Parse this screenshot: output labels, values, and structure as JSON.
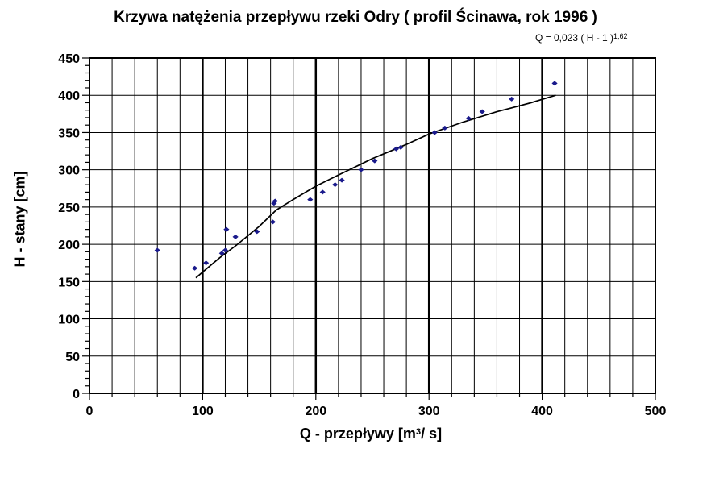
{
  "title": "Krzywa natężenia przepływu rzeki Odry ( profil Ścinawa, rok 1996 )",
  "formula": {
    "text": "Q = 0,023 ( H - 1 )",
    "exponent": "1,62"
  },
  "xlabel": {
    "before": "Q - przepływy [m",
    "sup": "3",
    "after": "/ s]"
  },
  "ylabel": "H - stany [cm]",
  "colors": {
    "points": "#1a1a8c",
    "curve": "#000000",
    "grid": "#000000"
  },
  "chart_data": {
    "type": "scatter",
    "xlim": [
      0,
      500
    ],
    "ylim": [
      0,
      450
    ],
    "x_ticks": [
      0,
      100,
      200,
      300,
      400,
      500
    ],
    "y_ticks": [
      0,
      50,
      100,
      150,
      200,
      250,
      300,
      350,
      400,
      450
    ],
    "x_major_step": 100,
    "x_minor_step": 20,
    "y_major_step": 50,
    "y_minor_step": 10,
    "grid": true,
    "points": [
      {
        "x": 60,
        "y": 192
      },
      {
        "x": 93,
        "y": 168
      },
      {
        "x": 103,
        "y": 175
      },
      {
        "x": 117,
        "y": 188
      },
      {
        "x": 120,
        "y": 192
      },
      {
        "x": 121,
        "y": 220
      },
      {
        "x": 129,
        "y": 210
      },
      {
        "x": 148,
        "y": 217
      },
      {
        "x": 162,
        "y": 230
      },
      {
        "x": 163,
        "y": 255
      },
      {
        "x": 164,
        "y": 258
      },
      {
        "x": 195,
        "y": 260
      },
      {
        "x": 206,
        "y": 270
      },
      {
        "x": 217,
        "y": 280
      },
      {
        "x": 223,
        "y": 286
      },
      {
        "x": 240,
        "y": 300
      },
      {
        "x": 252,
        "y": 312
      },
      {
        "x": 271,
        "y": 328
      },
      {
        "x": 275,
        "y": 330
      },
      {
        "x": 305,
        "y": 350
      },
      {
        "x": 314,
        "y": 356
      },
      {
        "x": 335,
        "y": 369
      },
      {
        "x": 347,
        "y": 378
      },
      {
        "x": 373,
        "y": 395
      },
      {
        "x": 411,
        "y": 416
      }
    ],
    "curve": {
      "name": "Q = 0,023 ( H - 1 )^1,62",
      "points": [
        {
          "x": 94,
          "y": 155
        },
        {
          "x": 101,
          "y": 164
        },
        {
          "x": 115,
          "y": 182
        },
        {
          "x": 130,
          "y": 199
        },
        {
          "x": 150,
          "y": 224
        },
        {
          "x": 165,
          "y": 246
        },
        {
          "x": 180,
          "y": 260
        },
        {
          "x": 200,
          "y": 278
        },
        {
          "x": 220,
          "y": 293
        },
        {
          "x": 250,
          "y": 315
        },
        {
          "x": 280,
          "y": 334
        },
        {
          "x": 300,
          "y": 348
        },
        {
          "x": 330,
          "y": 364
        },
        {
          "x": 360,
          "y": 378
        },
        {
          "x": 390,
          "y": 390
        },
        {
          "x": 412,
          "y": 400
        }
      ]
    }
  }
}
